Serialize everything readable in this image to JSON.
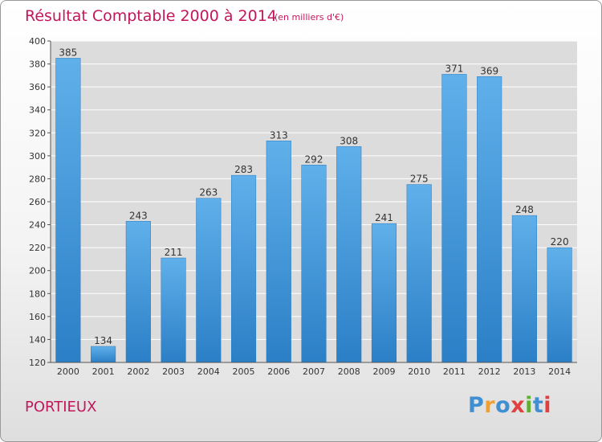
{
  "chart_data": {
    "type": "bar",
    "title": "Résultat Comptable 2000 à 2014",
    "subtitle": "(en milliers d'€)",
    "categories": [
      "2000",
      "2001",
      "2002",
      "2003",
      "2004",
      "2005",
      "2006",
      "2007",
      "2008",
      "2009",
      "2010",
      "2011",
      "2012",
      "2013",
      "2014"
    ],
    "values": [
      385,
      134,
      243,
      211,
      263,
      283,
      313,
      292,
      308,
      241,
      275,
      371,
      369,
      248,
      220
    ],
    "ylim": [
      120,
      400
    ],
    "yticks": [
      120,
      140,
      160,
      180,
      200,
      220,
      240,
      260,
      280,
      300,
      320,
      340,
      360,
      380,
      400
    ],
    "grid": true,
    "bar_color": "#4a9fdc"
  },
  "location": "PORTIEUX",
  "logo": [
    "P",
    "r",
    "o",
    "x",
    "i",
    "t",
    "i"
  ],
  "logo_colors": [
    "#3f8fd2",
    "#f0a030",
    "#3f8fd2",
    "#e04040",
    "#60b030",
    "#3f8fd2",
    "#e04040"
  ]
}
